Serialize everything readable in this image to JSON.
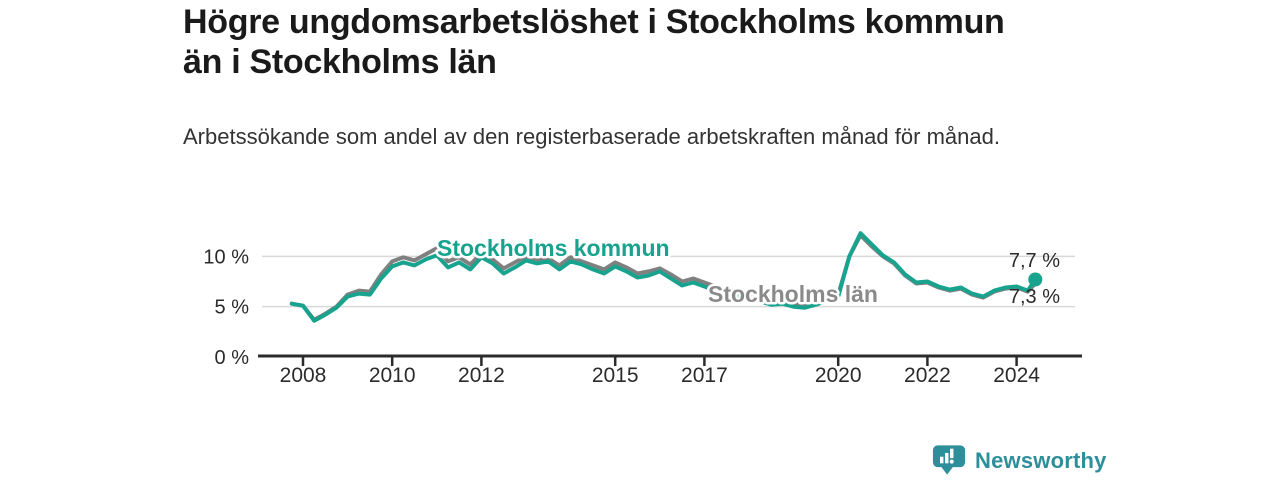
{
  "title": "Högre ungdomsarbetslöshet i Stockholms kommun än i Stockholms län",
  "title_lines": [
    "Högre ungdomsarbetslöshet i Stockholms kommun",
    "än i Stockholms län"
  ],
  "subtitle_lines": [
    "Arbetssökande som andel av den registerbaserade arbetskraften månad för",
    "månad."
  ],
  "colors": {
    "accent_teal": "#18A38E",
    "line_gray": "#808080",
    "label_gray": "#8a8a8a",
    "logo_teal": "#2E8F9B",
    "text": "#2b2b2b",
    "grid": "#d8d8d8",
    "axis": "#2b2b2b"
  },
  "logo": {
    "text": "Newsworthy"
  },
  "chart_data": {
    "type": "line",
    "title": "",
    "xlabel": "",
    "ylabel": "",
    "xlim": [
      2007.0,
      2025.5
    ],
    "ylim": [
      0,
      13.5
    ],
    "grid": "horizontal",
    "legend_position": "inline-labels",
    "x_ticks": [
      2008,
      2010,
      2012,
      2015,
      2017,
      2020,
      2022,
      2024
    ],
    "y_ticks": [
      {
        "value": 0,
        "label": "0 %"
      },
      {
        "value": 5,
        "label": "5 %"
      },
      {
        "value": 10,
        "label": "10 %"
      }
    ],
    "x": [
      2007.75,
      2008,
      2008.25,
      2008.5,
      2008.75,
      2009,
      2009.25,
      2009.5,
      2009.75,
      2010,
      2010.25,
      2010.5,
      2010.75,
      2011,
      2011.25,
      2011.5,
      2011.75,
      2012,
      2012.25,
      2012.5,
      2012.75,
      2013,
      2013.25,
      2013.5,
      2013.75,
      2014,
      2014.25,
      2014.5,
      2014.75,
      2015,
      2015.25,
      2015.5,
      2015.75,
      2016,
      2016.25,
      2016.5,
      2016.75,
      2017,
      2017.25,
      2017.5,
      2017.75,
      2018,
      2018.25,
      2018.5,
      2018.75,
      2019,
      2019.25,
      2019.5,
      2019.75,
      2020,
      2020.25,
      2020.5,
      2020.75,
      2021,
      2021.25,
      2021.5,
      2021.75,
      2022,
      2022.25,
      2022.5,
      2022.75,
      2023,
      2023.25,
      2023.5,
      2023.75,
      2024,
      2024.25,
      2024.42
    ],
    "series": [
      {
        "id": "kommun",
        "name": "Stockholms kommun",
        "color": "#18A38E",
        "end_label": "7,7 %",
        "end_value": 7.7,
        "values": [
          5.3,
          5.1,
          3.6,
          4.2,
          4.9,
          6.0,
          6.3,
          6.2,
          7.8,
          9.0,
          9.4,
          9.1,
          9.7,
          10.1,
          8.9,
          9.4,
          8.7,
          9.9,
          9.3,
          8.3,
          8.9,
          9.6,
          9.3,
          9.5,
          8.7,
          9.5,
          9.2,
          8.7,
          8.3,
          9.0,
          8.5,
          7.9,
          8.1,
          8.5,
          7.8,
          7.1,
          7.4,
          7.0,
          6.6,
          6.3,
          6.1,
          5.8,
          5.5,
          5.2,
          5.3,
          5.0,
          4.9,
          5.2,
          5.6,
          6.0,
          10.0,
          12.3,
          11.2,
          10.1,
          9.4,
          8.2,
          7.4,
          7.5,
          7.0,
          6.7,
          6.9,
          6.3,
          6.0,
          6.6,
          6.9,
          7.0,
          6.6,
          7.7
        ]
      },
      {
        "id": "lan",
        "name": "Stockholms län",
        "color": "#808080",
        "label_color": "#8a8a8a",
        "end_label": "7,3 %",
        "end_value": 7.3,
        "values": [
          5.3,
          5.1,
          3.7,
          4.3,
          5.0,
          6.2,
          6.6,
          6.5,
          8.2,
          9.5,
          9.9,
          9.6,
          10.2,
          10.8,
          9.5,
          9.9,
          9.2,
          10.3,
          9.7,
          8.8,
          9.4,
          10.0,
          9.7,
          9.8,
          9.1,
          9.9,
          9.5,
          9.1,
          8.7,
          9.4,
          8.9,
          8.3,
          8.5,
          8.8,
          8.2,
          7.5,
          7.8,
          7.4,
          7.0,
          6.7,
          6.5,
          6.2,
          5.8,
          5.5,
          5.6,
          5.3,
          5.2,
          5.5,
          5.9,
          6.2,
          10.0,
          12.1,
          11.0,
          10.0,
          9.3,
          8.1,
          7.3,
          7.4,
          6.9,
          6.6,
          6.8,
          6.2,
          5.9,
          6.5,
          6.8,
          6.9,
          6.5,
          7.3
        ]
      }
    ]
  }
}
